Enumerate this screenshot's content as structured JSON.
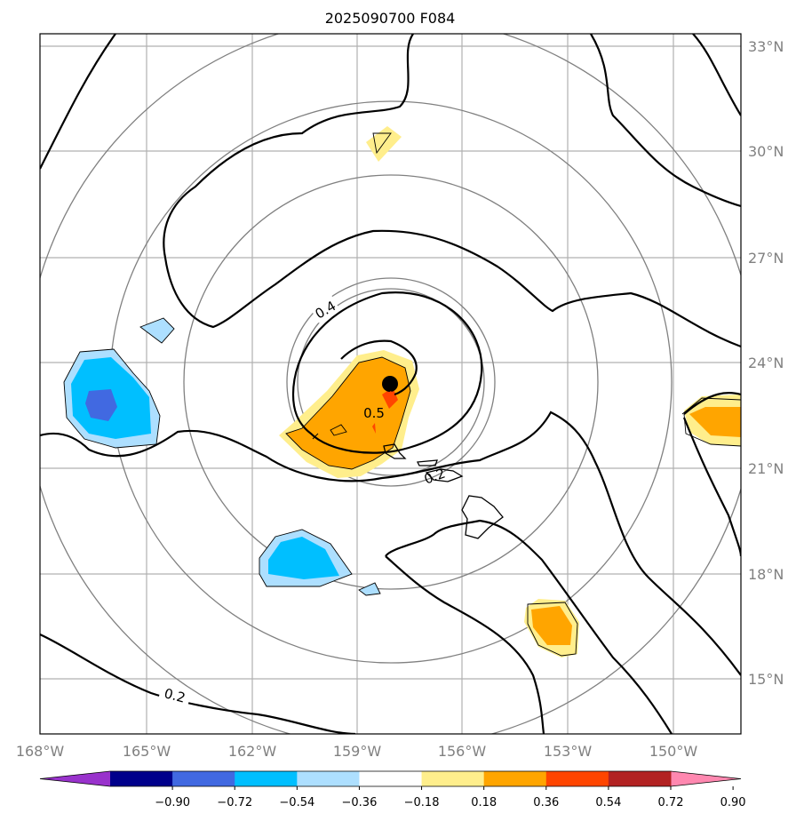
{
  "title": "2025090700 F084",
  "lon_labels": [
    "168°W",
    "165°W",
    "162°W",
    "159°W",
    "156°W",
    "153°W",
    "150°W"
  ],
  "lat_labels": [
    "33°N",
    "30°N",
    "27°N",
    "24°N",
    "21°N",
    "18°N",
    "15°N"
  ],
  "contour_labels": [
    "0.4",
    "0.5",
    "0.2",
    "0.2"
  ],
  "colorbar": {
    "ticks": [
      "−0.90",
      "−0.72",
      "−0.54",
      "−0.36",
      "−0.18",
      "0.18",
      "0.36",
      "0.54",
      "0.72",
      "0.90"
    ],
    "colors": [
      "#9932CC",
      "#00008B",
      "#4169E1",
      "#00BFFF",
      "#ADDFFF",
      "#FFFFFF",
      "#FFEE8C",
      "#FFA500",
      "#FF4500",
      "#B22222",
      "#FF88B0"
    ]
  },
  "center_marker": {
    "lon": -158.0,
    "lat": 23.4
  }
}
